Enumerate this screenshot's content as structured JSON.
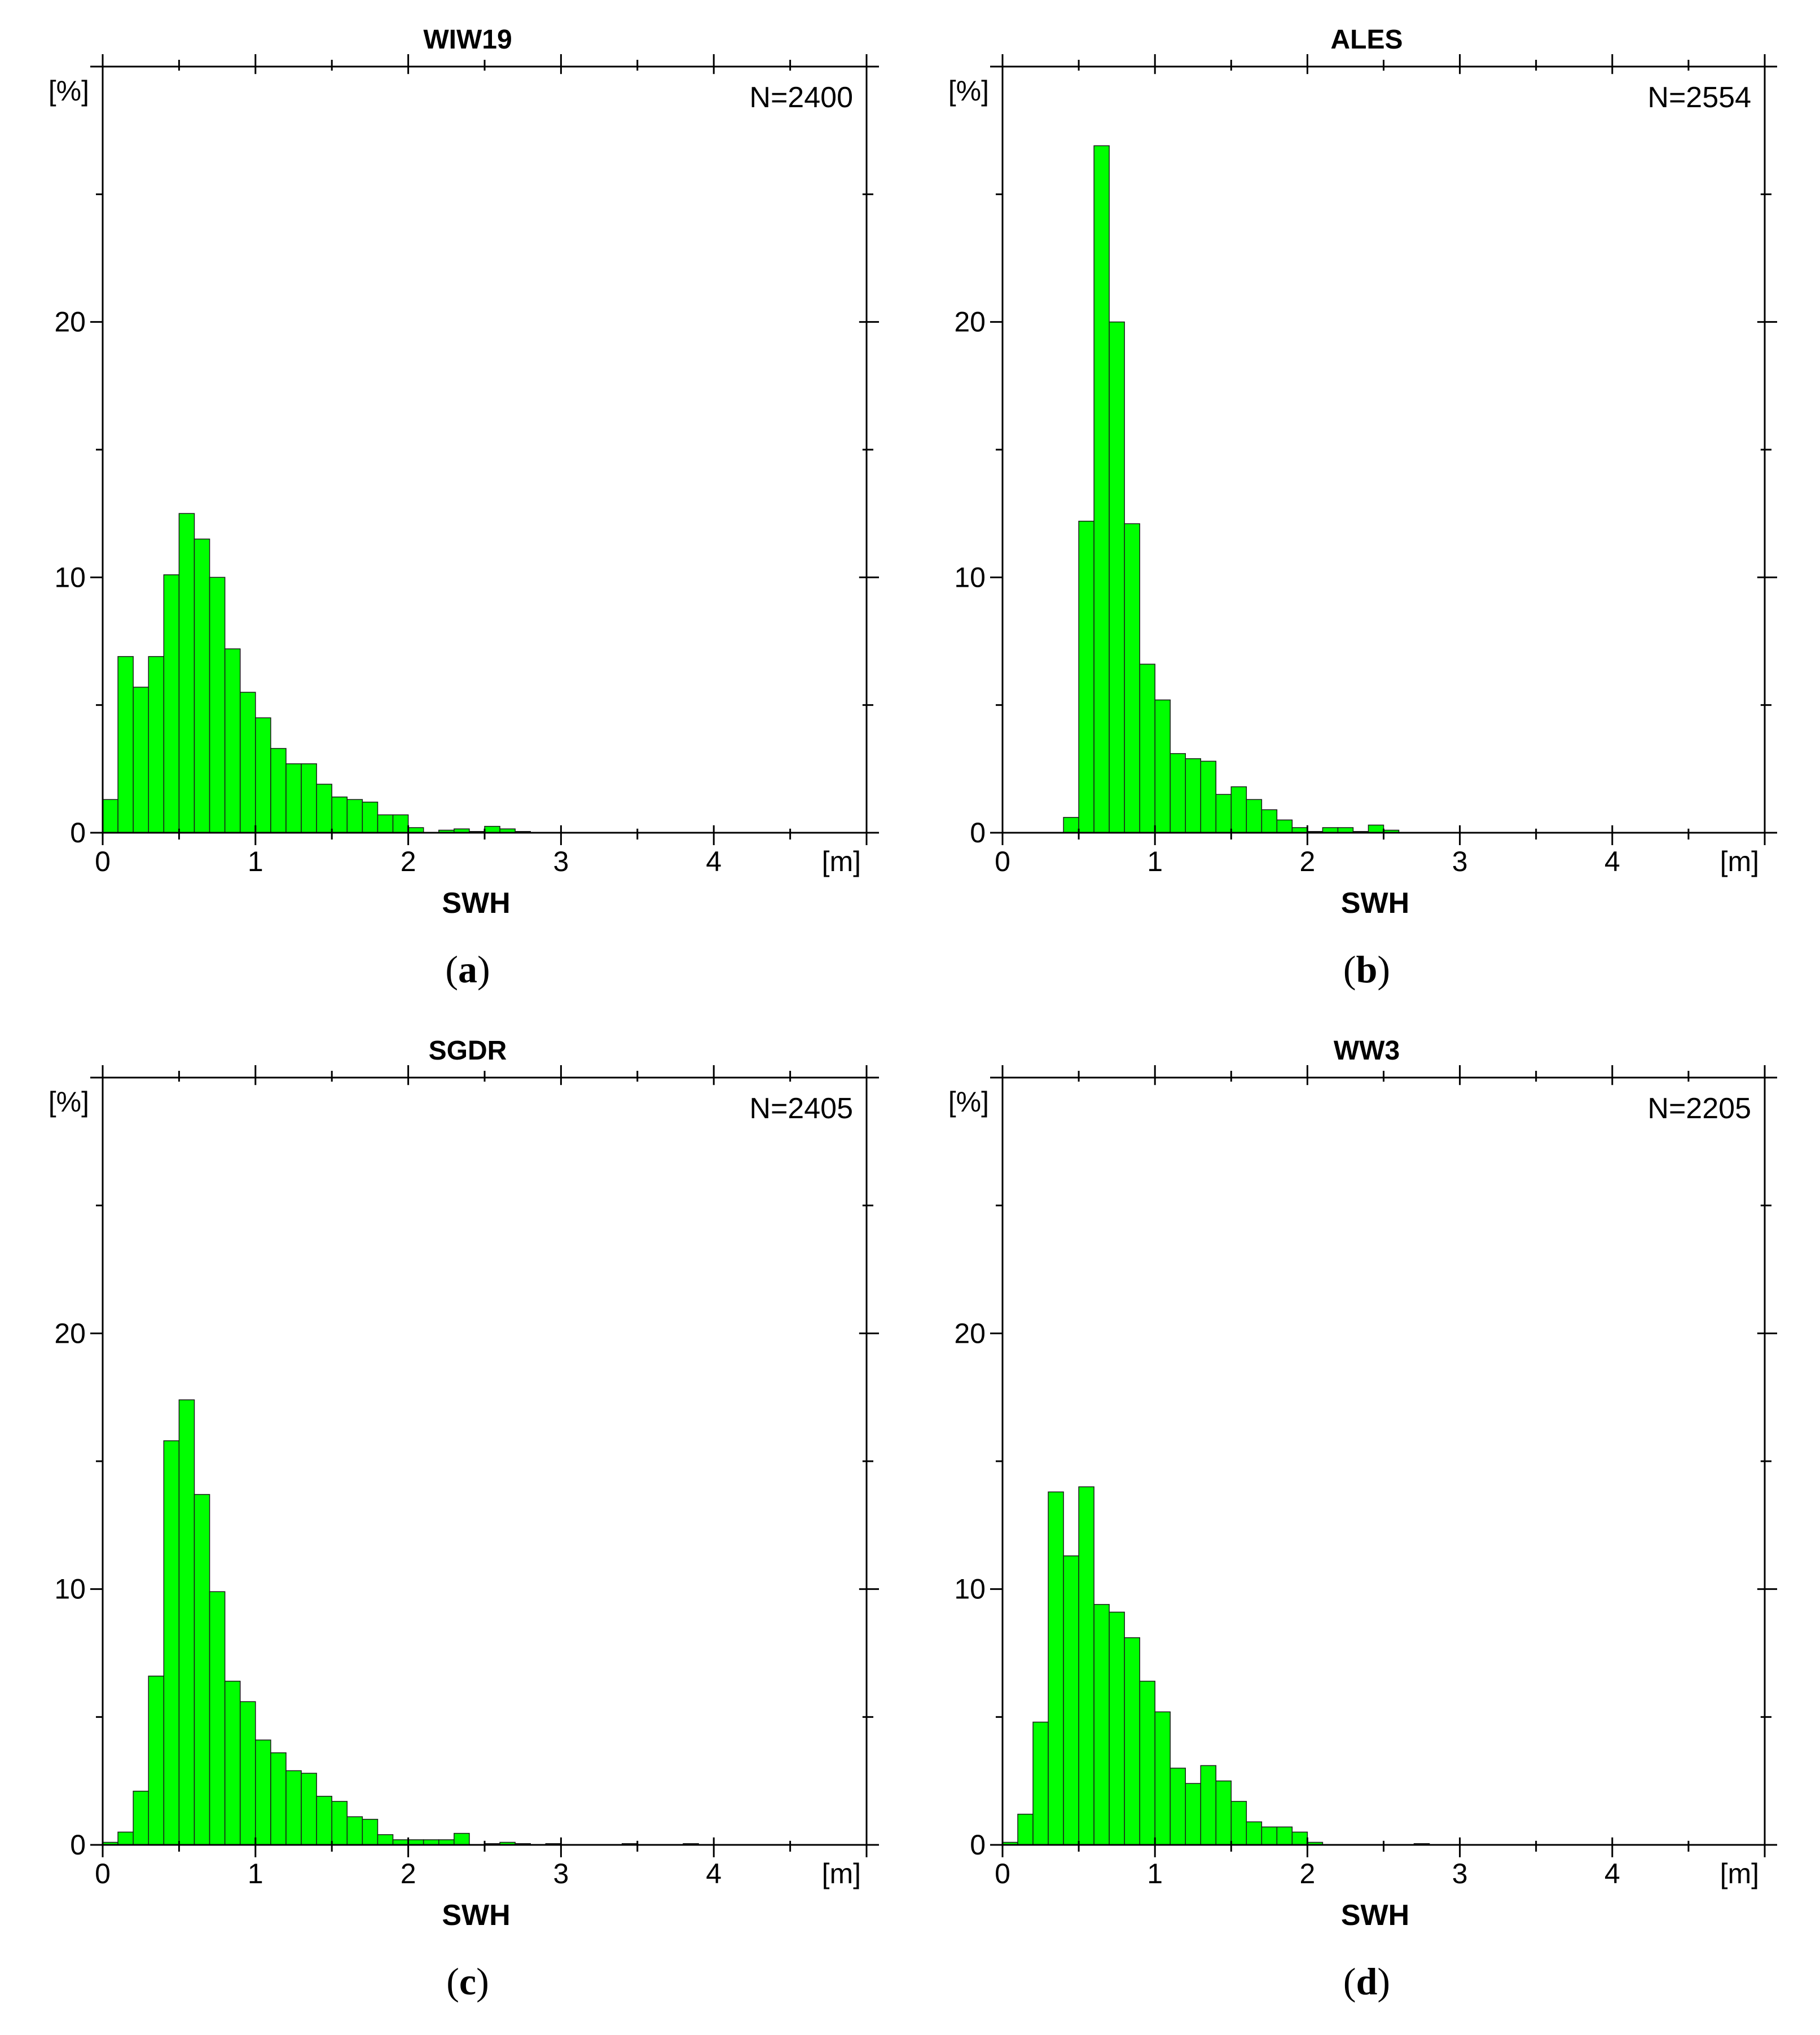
{
  "colors": {
    "bar_fill": "#00ff00",
    "bar_edge": "#1a1a1a",
    "axis": "#000000"
  },
  "chart_data": [
    {
      "type": "bar",
      "title": "WIW19",
      "caption_letter": "a",
      "n_label": "N=2400",
      "xlabel": "SWH",
      "x_unit": "[m]",
      "y_unit": "[%]",
      "xlim": [
        0,
        5
      ],
      "ylim": [
        0,
        30
      ],
      "x_ticks": [
        "0",
        "1",
        "2",
        "3",
        "4"
      ],
      "y_ticks": [
        "0",
        "10",
        "20"
      ],
      "bin_width": 0.1,
      "values": [
        1.3,
        6.9,
        5.7,
        6.9,
        10.1,
        12.5,
        11.5,
        10.0,
        7.2,
        5.5,
        4.5,
        3.3,
        2.7,
        2.7,
        1.9,
        1.4,
        1.3,
        1.2,
        0.7,
        0.7,
        0.2,
        0.0,
        0.1,
        0.15,
        0.05,
        0.25,
        0.15,
        0.05,
        0.0,
        0.0
      ]
    },
    {
      "type": "bar",
      "title": "ALES",
      "caption_letter": "b",
      "n_label": "N=2554",
      "xlabel": "SWH",
      "x_unit": "[m]",
      "y_unit": "[%]",
      "xlim": [
        0,
        5
      ],
      "ylim": [
        0,
        30
      ],
      "x_ticks": [
        "0",
        "1",
        "2",
        "3",
        "4"
      ],
      "y_ticks": [
        "0",
        "10",
        "20"
      ],
      "bin_width": 0.1,
      "values": [
        0,
        0,
        0,
        0,
        0.6,
        12.2,
        26.9,
        20.0,
        12.1,
        6.6,
        5.2,
        3.1,
        2.9,
        2.8,
        1.5,
        1.8,
        1.3,
        0.9,
        0.5,
        0.2,
        0.05,
        0.2,
        0.2,
        0.05,
        0.3,
        0.1,
        0.0,
        0.0
      ]
    },
    {
      "type": "bar",
      "title": "SGDR",
      "caption_letter": "c",
      "n_label": "N=2405",
      "xlabel": "SWH",
      "x_unit": "[m]",
      "y_unit": "[%]",
      "xlim": [
        0,
        5
      ],
      "ylim": [
        0,
        30
      ],
      "x_ticks": [
        "0",
        "1",
        "2",
        "3",
        "4"
      ],
      "y_ticks": [
        "0",
        "10",
        "20"
      ],
      "bin_width": 0.1,
      "values": [
        0.1,
        0.5,
        2.1,
        6.6,
        15.8,
        17.4,
        13.7,
        9.9,
        6.4,
        5.6,
        4.1,
        3.6,
        2.9,
        2.8,
        1.9,
        1.7,
        1.1,
        1.0,
        0.4,
        0.2,
        0.2,
        0.2,
        0.2,
        0.45,
        0.0,
        0.05,
        0.1,
        0.05,
        0.0,
        0.05,
        0.0,
        0.0,
        0.0,
        0.0,
        0.05,
        0.0,
        0.0,
        0.0,
        0.05,
        0.0
      ]
    },
    {
      "type": "bar",
      "title": "WW3",
      "caption_letter": "d",
      "n_label": "N=2205",
      "xlabel": "SWH",
      "x_unit": "[m]",
      "y_unit": "[%]",
      "xlim": [
        0,
        5
      ],
      "ylim": [
        0,
        30
      ],
      "x_ticks": [
        "0",
        "1",
        "2",
        "3",
        "4"
      ],
      "y_ticks": [
        "0",
        "10",
        "20"
      ],
      "bin_width": 0.1,
      "values": [
        0.1,
        1.2,
        4.8,
        13.8,
        11.3,
        14.0,
        9.4,
        9.1,
        8.1,
        6.4,
        5.2,
        3.0,
        2.4,
        3.1,
        2.5,
        1.7,
        0.9,
        0.7,
        0.7,
        0.5,
        0.1,
        0.0,
        0.0,
        0.0,
        0.0,
        0.0,
        0.0,
        0.05,
        0.0,
        0.0
      ]
    }
  ]
}
